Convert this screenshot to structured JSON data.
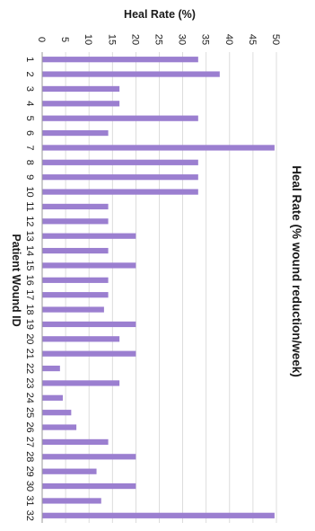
{
  "chart_data": {
    "type": "bar",
    "orientation": "horizontal",
    "title": "Heal Rate (% wound reduction/week)",
    "xlabel": "Heal Rate (%)",
    "ylabel": "Patient Wound ID",
    "xlim": [
      0,
      50
    ],
    "xticks": [
      0,
      5,
      10,
      15,
      20,
      25,
      30,
      35,
      40,
      45,
      50
    ],
    "grid": true,
    "bar_color": "#9b7fd0",
    "categories": [
      "1",
      "2",
      "3",
      "4",
      "5",
      "6",
      "7",
      "8",
      "9",
      "10",
      "11",
      "12",
      "13",
      "14",
      "15",
      "16",
      "17",
      "18",
      "19",
      "20",
      "21",
      "22",
      "23",
      "24",
      "25",
      "26",
      "27",
      "28",
      "29",
      "30",
      "31",
      "32"
    ],
    "values": [
      33.3,
      37.9,
      16.5,
      16.5,
      33.3,
      14.1,
      49.6,
      33.3,
      33.3,
      33.3,
      14.1,
      14.1,
      20.0,
      14.1,
      20.0,
      14.1,
      14.1,
      13.2,
      20.0,
      16.5,
      20.0,
      3.8,
      16.5,
      4.4,
      6.2,
      7.3,
      14.1,
      20.0,
      11.6,
      20.0,
      12.6,
      49.6
    ]
  }
}
